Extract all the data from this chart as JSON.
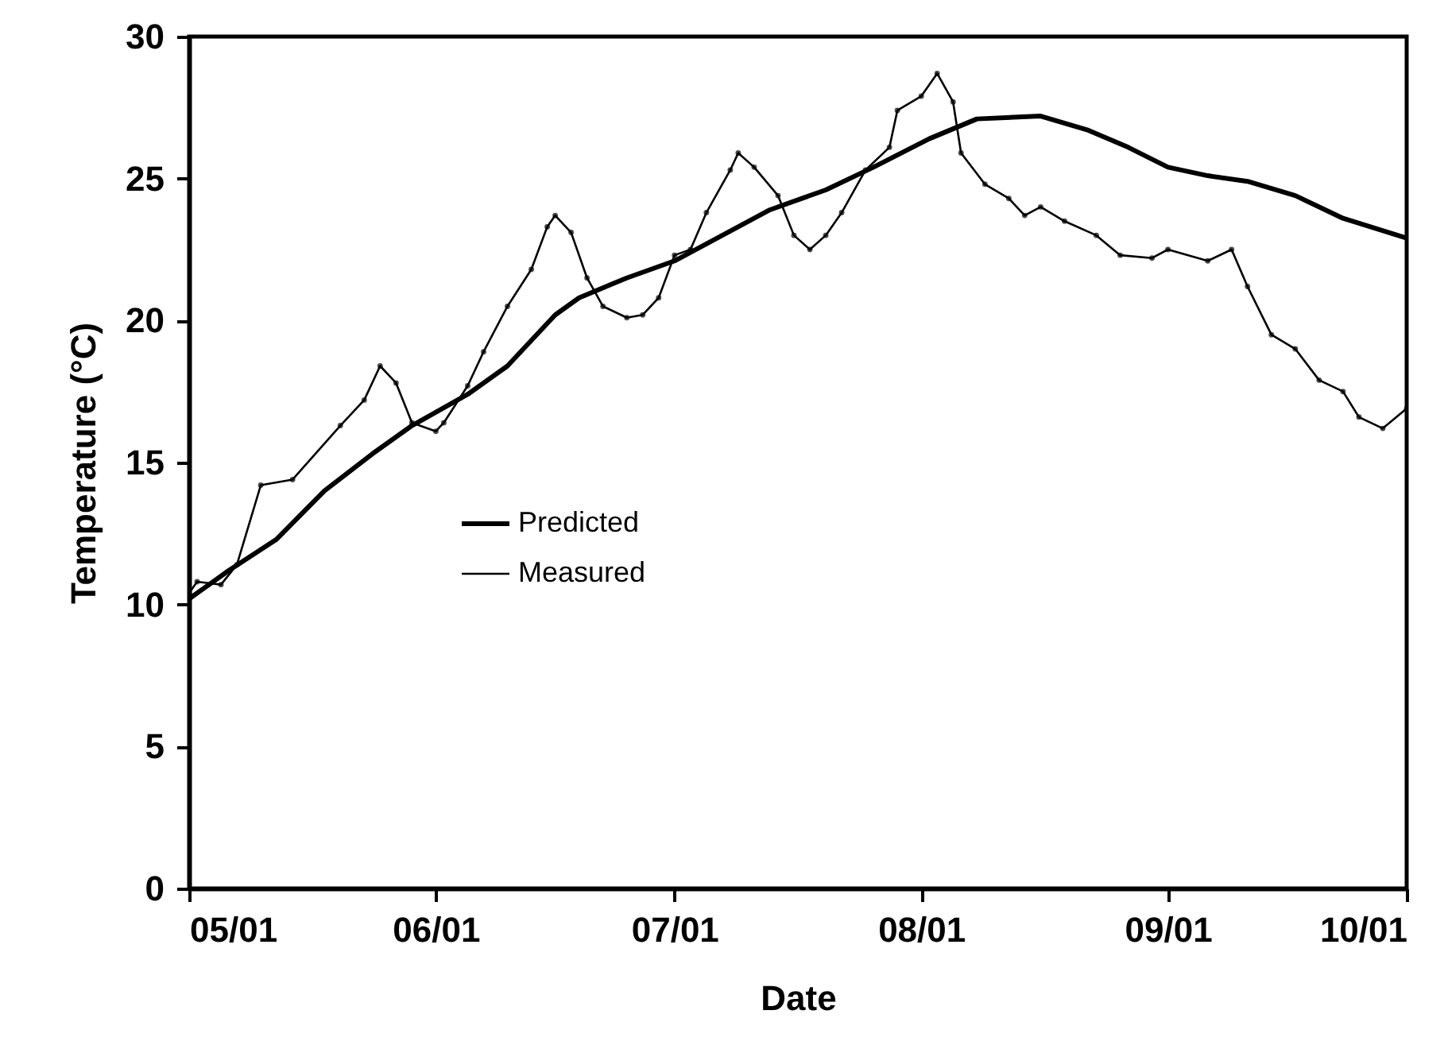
{
  "chart_data": {
    "type": "line",
    "xlabel": "Date",
    "ylabel": "Temperature (°C)",
    "xlim": [
      "--05-01",
      "--10-01"
    ],
    "xticks": [
      {
        "value": "--05-01",
        "label": "05/01"
      },
      {
        "value": "--06-01",
        "label": "06/01"
      },
      {
        "value": "--07-01",
        "label": "07/01"
      },
      {
        "value": "--08-01",
        "label": "08/01"
      },
      {
        "value": "--09-01",
        "label": "09/01"
      },
      {
        "value": "--10-01",
        "label": "10/01"
      }
    ],
    "ylim": [
      0,
      30
    ],
    "yticks": [
      0,
      5,
      10,
      15,
      20,
      25,
      30
    ],
    "grid": false,
    "legend": "left",
    "series": [
      {
        "name": "Predicted",
        "color": "#000000",
        "marker": "none",
        "x": [
          "--05-01",
          "--05-06",
          "--05-12",
          "--05-18",
          "--05-24",
          "--05-29",
          "--06-05",
          "--06-10",
          "--06-16",
          "--06-19",
          "--06-25",
          "--07-01",
          "--07-07",
          "--07-13",
          "--07-20",
          "--07-26",
          "--08-02",
          "--08-08",
          "--08-16",
          "--08-22",
          "--08-27",
          "--09-01",
          "--09-06",
          "--09-11",
          "--09-17",
          "--09-23",
          "--10-01"
        ],
        "values": [
          10.2,
          11.2,
          12.3,
          14.0,
          15.3,
          16.3,
          17.4,
          18.4,
          20.2,
          20.8,
          21.5,
          22.1,
          23.0,
          23.9,
          24.6,
          25.4,
          26.4,
          27.1,
          27.2,
          26.7,
          26.1,
          25.4,
          25.1,
          24.9,
          24.4,
          23.6,
          22.9
        ]
      },
      {
        "name": "Measured",
        "color": "#000000",
        "marker": "circle",
        "x": [
          "--05-01",
          "--05-02",
          "--05-05",
          "--05-07",
          "--05-10",
          "--05-14",
          "--05-20",
          "--05-23",
          "--05-25",
          "--05-27",
          "--05-29",
          "--06-01",
          "--06-02",
          "--06-05",
          "--06-07",
          "--06-10",
          "--06-13",
          "--06-15",
          "--06-16",
          "--06-18",
          "--06-20",
          "--06-22",
          "--06-25",
          "--06-27",
          "--06-29",
          "--07-01",
          "--07-03",
          "--07-05",
          "--07-08",
          "--07-09",
          "--07-11",
          "--07-14",
          "--07-16",
          "--07-18",
          "--07-20",
          "--07-22",
          "--07-25",
          "--07-28",
          "--07-29",
          "--08-01",
          "--08-03",
          "--08-05",
          "--08-06",
          "--08-09",
          "--08-12",
          "--08-14",
          "--08-16",
          "--08-19",
          "--08-23",
          "--08-26",
          "--08-30",
          "--09-01",
          "--09-06",
          "--09-09",
          "--09-11",
          "--09-14",
          "--09-17",
          "--09-20",
          "--09-23",
          "--09-25",
          "--09-28",
          "--10-01"
        ],
        "values": [
          10.4,
          10.8,
          10.7,
          11.4,
          14.2,
          14.4,
          16.3,
          17.2,
          18.4,
          17.8,
          16.4,
          16.1,
          16.4,
          17.7,
          18.9,
          20.5,
          21.8,
          23.3,
          23.7,
          23.1,
          21.5,
          20.5,
          20.1,
          20.2,
          20.8,
          22.3,
          22.5,
          23.8,
          25.3,
          25.9,
          25.4,
          24.4,
          23.0,
          22.5,
          23.0,
          23.8,
          25.3,
          26.1,
          27.4,
          27.9,
          28.7,
          27.7,
          25.9,
          24.8,
          24.3,
          23.7,
          24.0,
          23.5,
          23.0,
          22.3,
          22.2,
          22.5,
          22.1,
          22.5,
          21.2,
          19.5,
          19.0,
          17.9,
          17.5,
          16.6,
          16.2,
          16.9
        ]
      }
    ]
  }
}
